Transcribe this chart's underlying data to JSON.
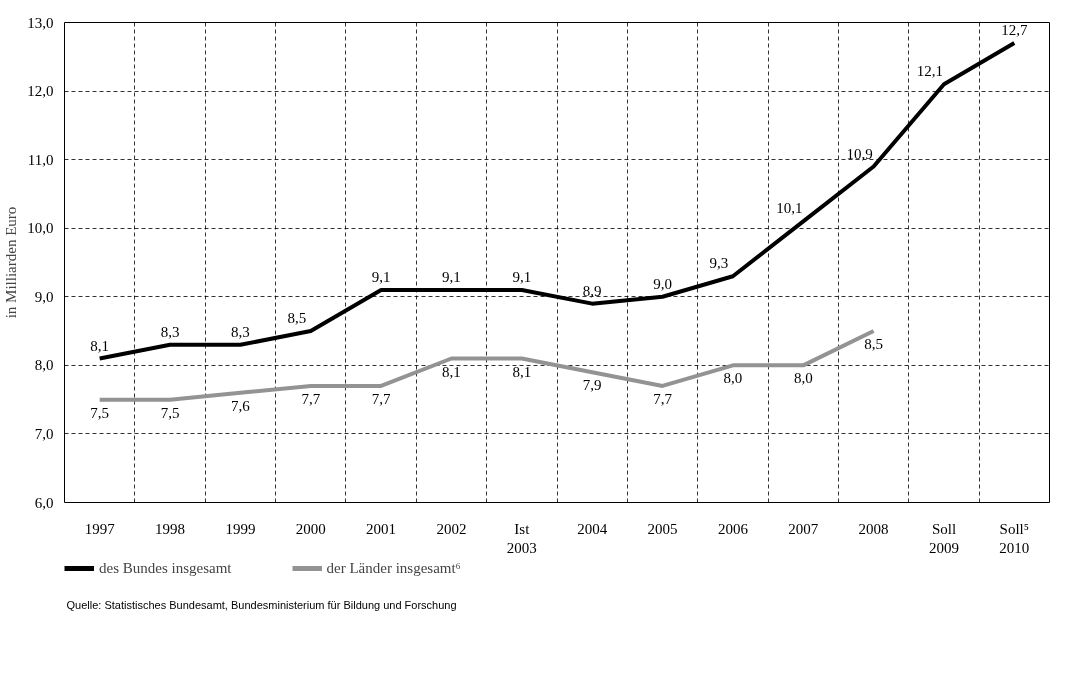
{
  "chart_data": {
    "type": "line",
    "ylabel": "in Milliarden Euro",
    "categories": [
      "1997",
      "1998",
      "1999",
      "2000",
      "2001",
      "2002",
      "Ist\n2003",
      "2004",
      "2005",
      "2006",
      "2007",
      "2008",
      "Soll\n2009",
      "Soll⁵\n2010"
    ],
    "series": [
      {
        "name": "des Bundes insgesamt",
        "color": "#000000",
        "values": [
          8.1,
          8.3,
          8.3,
          8.5,
          9.1,
          9.1,
          9.1,
          8.9,
          9.0,
          9.3,
          10.1,
          10.9,
          12.1,
          12.7
        ],
        "value_labels": [
          "8,1",
          "8,3",
          "8,3",
          "8,5",
          "9,1",
          "9,1",
          "9,1",
          "8,9",
          "9,0",
          "9,3",
          "10,1",
          "10,9",
          "12,1",
          "12,7"
        ]
      },
      {
        "name": "der Länder insgesamt⁶",
        "color": "#939393",
        "values": [
          7.5,
          7.5,
          7.6,
          7.7,
          7.7,
          8.1,
          8.1,
          7.9,
          7.7,
          8.0,
          8.0,
          8.5,
          null,
          null
        ],
        "value_labels": [
          "7,5",
          "7,5",
          "7,6",
          "7,7",
          "7,7",
          "8,1",
          "8,1",
          "7,9",
          "7,7",
          "8,0",
          "8,0",
          "8,5",
          null,
          null
        ]
      }
    ],
    "ylim": [
      6.0,
      13.0
    ],
    "yticks": [
      {
        "value": 6,
        "label": "6,0"
      },
      {
        "value": 7,
        "label": "7,0"
      },
      {
        "value": 8,
        "label": "8,0"
      },
      {
        "value": 9,
        "label": "9,0"
      },
      {
        "value": 10,
        "label": "10,0"
      },
      {
        "value": 11,
        "label": "11,0"
      },
      {
        "value": 12,
        "label": "12,0"
      },
      {
        "value": 13,
        "label": "13,0"
      }
    ],
    "grid": true,
    "legend": "bottom",
    "marker": "none",
    "line_style": "solid",
    "annotations": [
      "Quelle: Statistisches Bundesamt, Bundesministerium für Bildung und Forschung"
    ]
  }
}
